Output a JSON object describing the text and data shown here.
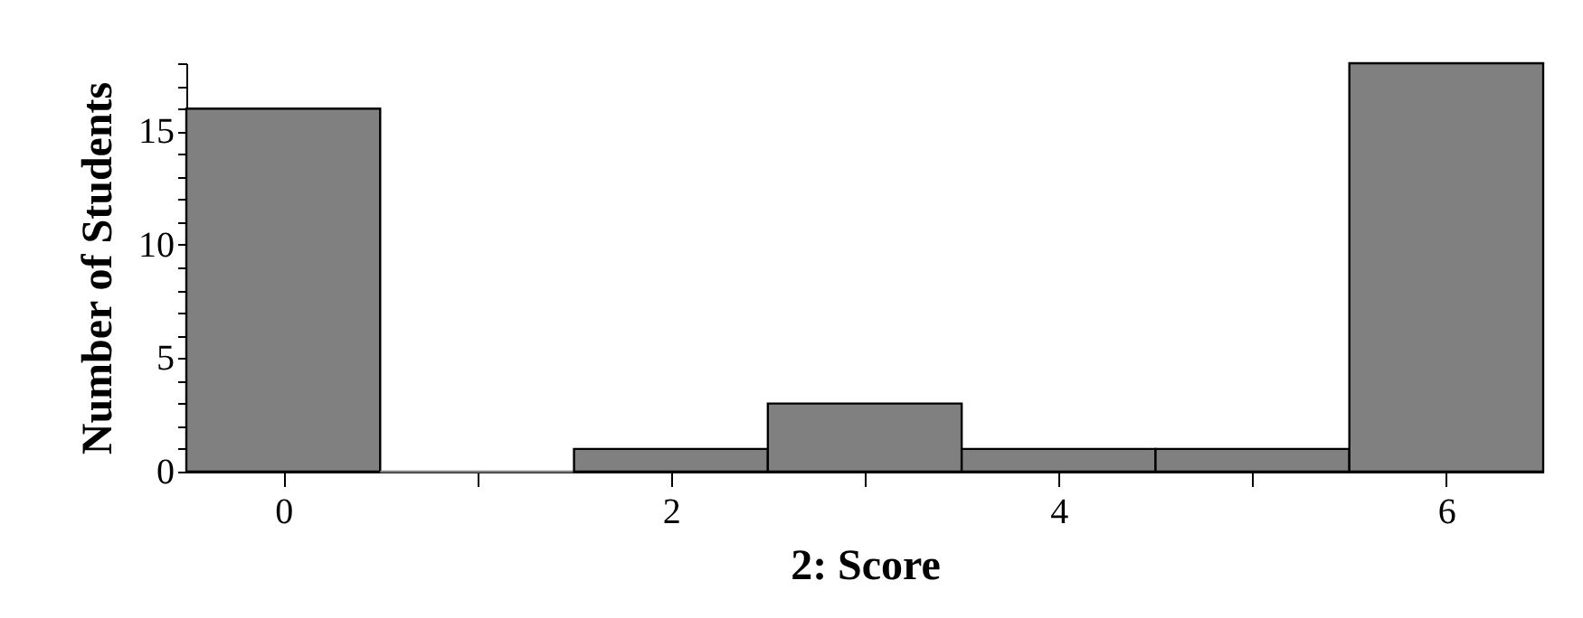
{
  "chart_data": {
    "type": "histogram",
    "xlabel": "2: Score",
    "ylabel": "Number of Students",
    "bins": [
      -0.5,
      0.5,
      1.5,
      2.5,
      3.5,
      4.5,
      5.5,
      6.5
    ],
    "values": [
      16,
      0,
      1,
      3,
      1,
      1,
      18
    ],
    "color": "#808080",
    "xlim": [
      -0.5,
      6.5
    ],
    "xticks": [
      0,
      {
        "value": 1,
        "label": null
      },
      2,
      {
        "value": 3,
        "label": null
      },
      4,
      {
        "value": 5,
        "label": null
      },
      6
    ],
    "ylim": [
      0,
      18
    ],
    "yticks": [
      0,
      {
        "value": 1,
        "label": null
      },
      {
        "value": 2,
        "label": null
      },
      {
        "value": 3,
        "label": null
      },
      {
        "value": 4,
        "label": null
      },
      5,
      {
        "value": 6,
        "label": null
      },
      {
        "value": 7,
        "label": null
      },
      {
        "value": 8,
        "label": null
      },
      {
        "value": 9,
        "label": null
      },
      10,
      {
        "value": 11,
        "label": null
      },
      {
        "value": 12,
        "label": null
      },
      {
        "value": 13,
        "label": null
      },
      {
        "value": 14,
        "label": null
      },
      15,
      {
        "value": 16,
        "label": null
      },
      {
        "value": 17,
        "label": null
      },
      {
        "value": 18,
        "label": null
      }
    ],
    "grid": false
  }
}
